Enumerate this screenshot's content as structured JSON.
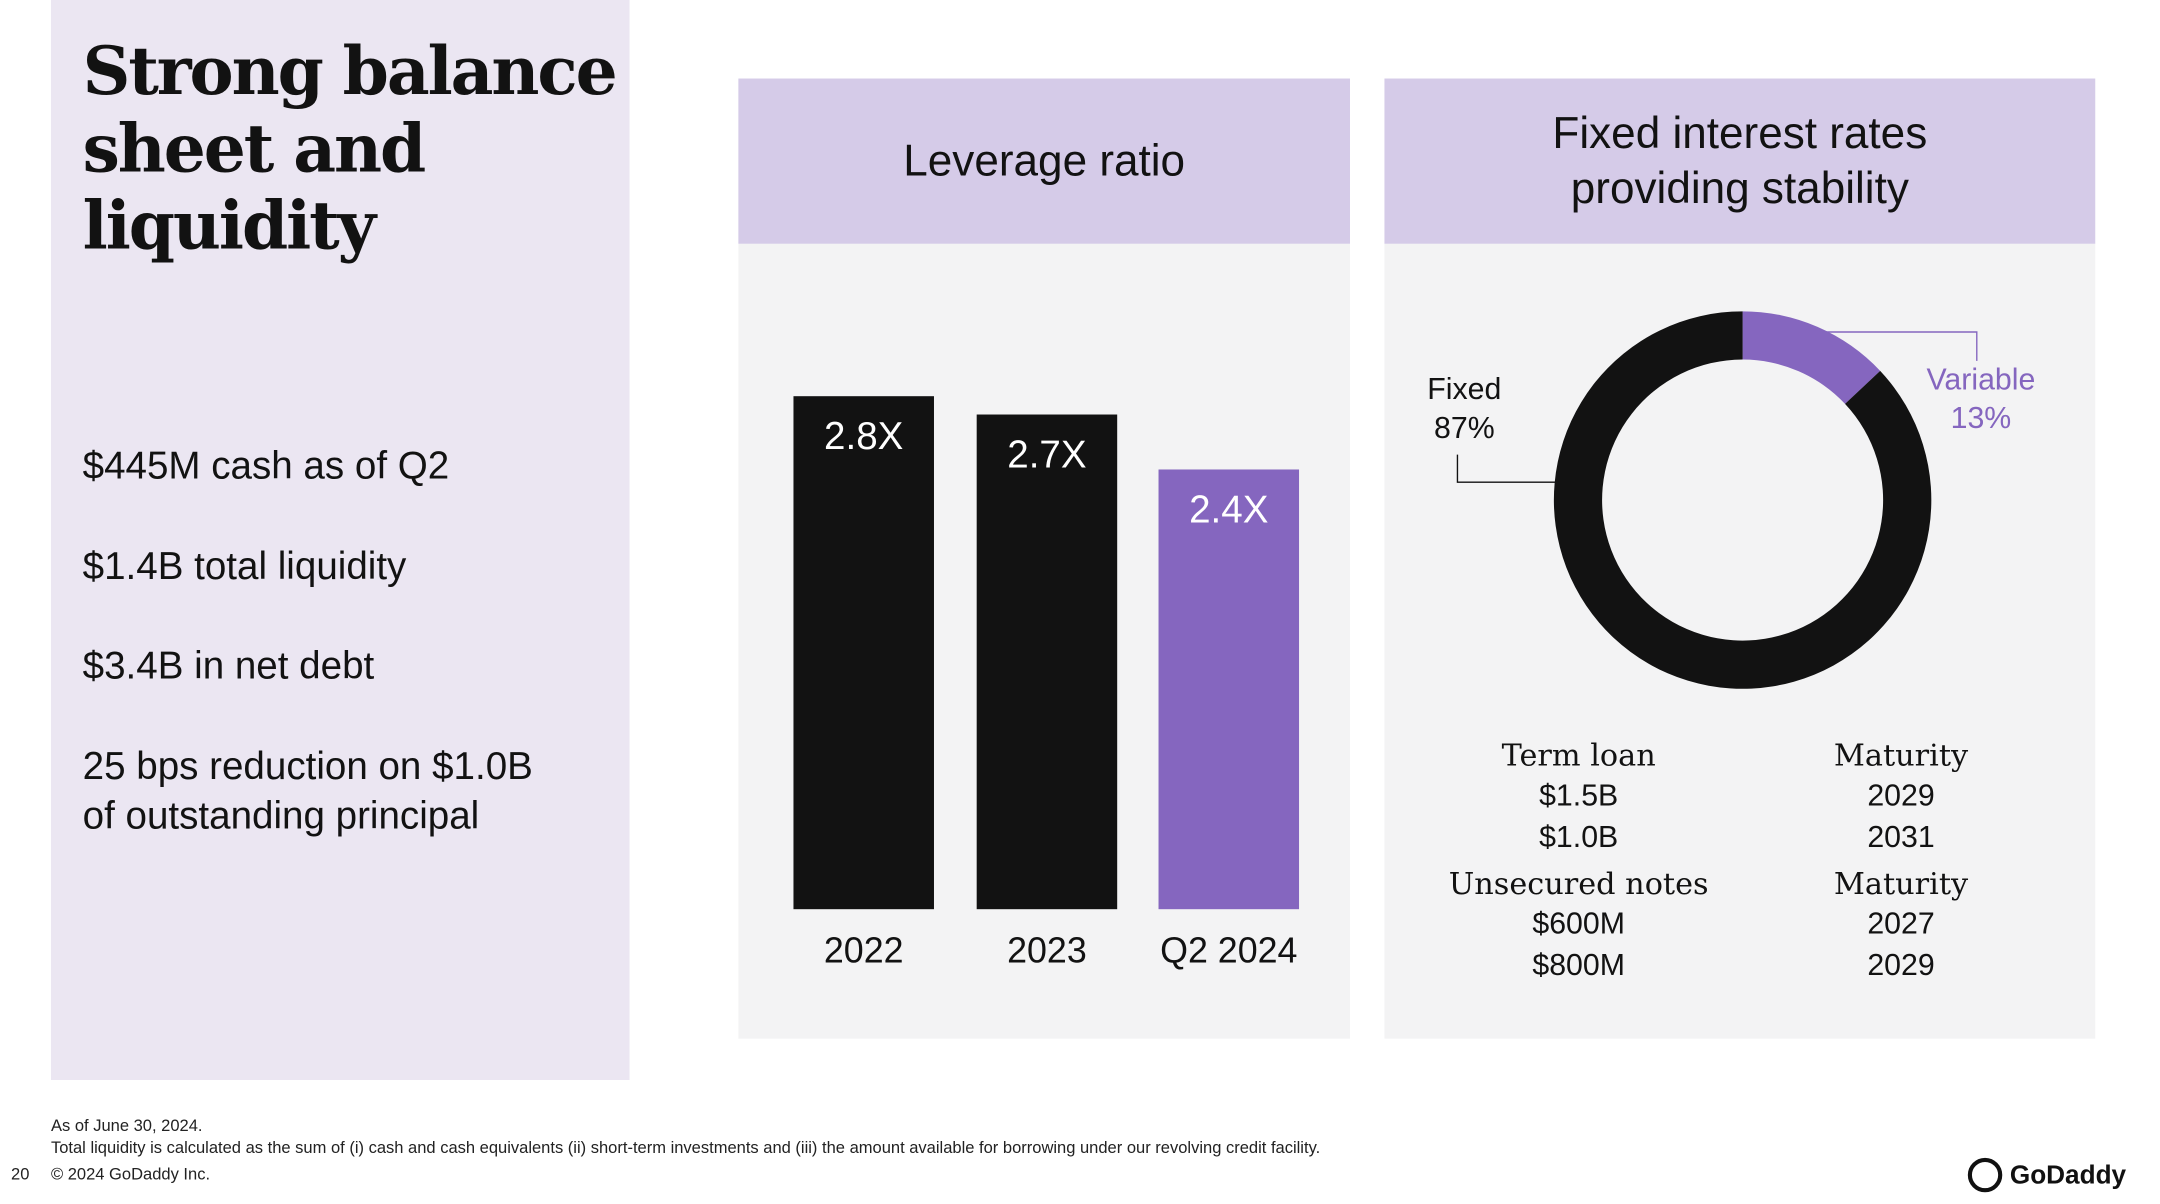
{
  "title_lines": [
    "Strong balance",
    "sheet and",
    "liquidity"
  ],
  "bullets": [
    [
      "$445M cash as of Q2"
    ],
    [
      "$1.4B total liquidity"
    ],
    [
      "$3.4B in net debt"
    ],
    [
      "25 bps reduction on $1.0B",
      "of outstanding principal"
    ]
  ],
  "chart_data": [
    {
      "type": "bar",
      "title": "Leverage ratio",
      "categories": [
        "2022",
        "2023",
        "Q2 2024"
      ],
      "values": [
        2.8,
        2.7,
        2.4
      ],
      "value_labels": [
        "2.8X",
        "2.7X",
        "2.4X"
      ],
      "colors": [
        "#121212",
        "#121212",
        "#8566bf"
      ]
    },
    {
      "type": "pie",
      "title_lines": [
        "Fixed interest rates",
        "providing stability"
      ],
      "categories": [
        "Fixed",
        "Variable"
      ],
      "values": [
        87,
        13
      ],
      "value_labels": [
        "87%",
        "13%"
      ],
      "colors": [
        "#121212",
        "#8566bf"
      ],
      "label_colors": [
        "#121212",
        "#8566bf"
      ]
    }
  ],
  "debt_table": [
    {
      "header": [
        "Term loan",
        "Maturity"
      ],
      "rows": [
        [
          "$1.5B",
          "2029"
        ],
        [
          "$1.0B",
          "2031"
        ]
      ]
    },
    {
      "header": [
        "Unsecured notes",
        "Maturity"
      ],
      "rows": [
        [
          "$600M",
          "2027"
        ],
        [
          "$800M",
          "2029"
        ]
      ]
    }
  ],
  "footnotes": [
    "As of June 30, 2024.",
    "Total liquidity is calculated as the sum of (i) cash and cash equivalents (ii) short-term investments and (iii) the amount available for borrowing under our revolving credit facility."
  ],
  "page_number": "20",
  "copyright": "© 2024 GoDaddy Inc.",
  "logo": "GoDaddy"
}
